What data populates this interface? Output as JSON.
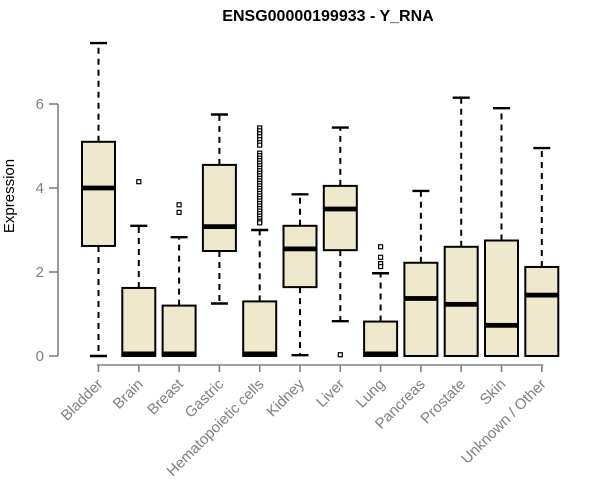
{
  "chart_data": {
    "type": "boxplot",
    "title": "ENSG00000199933 - Y_RNA",
    "ylabel": "Expression",
    "xlabel": "",
    "ylim": [
      0,
      7.6
    ],
    "yticks": [
      0,
      2,
      4,
      6
    ],
    "grid": false,
    "legend": "none",
    "colors": {
      "box_fill": "#EEE8CD",
      "box_border": "#000000",
      "median": "#000000",
      "whisker": "#000000",
      "axis": "#808080",
      "axis_label": "#7E7E86",
      "title": "#000000",
      "background": "#FFFFFF"
    },
    "categories": [
      "Bladder",
      "Brain",
      "Breast",
      "Gastric",
      "Hematopoietic cells",
      "Kidney",
      "Liver",
      "Lung",
      "Pancreas",
      "Prostate",
      "Skin",
      "Unknown / Other"
    ],
    "boxes": [
      {
        "category": "Bladder",
        "whisker_low": 0,
        "q1": 2.62,
        "median": 4.0,
        "q3": 5.1,
        "whisker_high": 7.45,
        "outliers": []
      },
      {
        "category": "Brain",
        "whisker_low": 0,
        "q1": 0,
        "median": 0.05,
        "q3": 1.62,
        "whisker_high": 3.1,
        "outliers": [
          4.15
        ]
      },
      {
        "category": "Breast",
        "whisker_low": 0,
        "q1": 0,
        "median": 0.05,
        "q3": 1.2,
        "whisker_high": 2.83,
        "outliers": [
          3.6,
          3.42
        ]
      },
      {
        "category": "Gastric",
        "whisker_low": 1.25,
        "q1": 2.5,
        "median": 3.08,
        "q3": 4.55,
        "whisker_high": 5.75,
        "outliers": []
      },
      {
        "category": "Hematopoietic cells",
        "whisker_low": 0,
        "q1": 0,
        "median": 0.05,
        "q3": 1.3,
        "whisker_high": 3.0,
        "outliers": [
          5.43,
          5.36,
          5.29,
          5.22,
          5.15,
          5.08,
          5.02,
          4.83,
          4.77,
          4.71,
          4.65,
          4.59,
          4.53,
          4.47,
          4.41,
          4.35,
          4.29,
          4.23,
          4.17,
          4.11,
          4.05,
          3.99,
          3.93,
          3.87,
          3.81,
          3.75,
          3.69,
          3.63,
          3.57,
          3.51,
          3.45,
          3.39,
          3.33,
          3.27,
          3.21,
          3.17
        ]
      },
      {
        "category": "Kidney",
        "whisker_low": 0.02,
        "q1": 1.64,
        "median": 2.55,
        "q3": 3.1,
        "whisker_high": 3.85,
        "outliers": []
      },
      {
        "category": "Liver",
        "whisker_low": 0.83,
        "q1": 2.52,
        "median": 3.5,
        "q3": 4.05,
        "whisker_high": 5.44,
        "outliers": [
          0.03
        ]
      },
      {
        "category": "Lung",
        "whisker_low": 0,
        "q1": 0,
        "median": 0.05,
        "q3": 0.82,
        "whisker_high": 1.97,
        "outliers": [
          2.6,
          2.35,
          2.2,
          2.13
        ]
      },
      {
        "category": "Pancreas",
        "whisker_low": 0,
        "q1": 0,
        "median": 1.37,
        "q3": 2.22,
        "whisker_high": 3.93,
        "outliers": []
      },
      {
        "category": "Prostate",
        "whisker_low": 0,
        "q1": 0,
        "median": 1.23,
        "q3": 2.6,
        "whisker_high": 6.15,
        "outliers": []
      },
      {
        "category": "Skin",
        "whisker_low": 0,
        "q1": 0,
        "median": 0.73,
        "q3": 2.75,
        "whisker_high": 5.9,
        "outliers": []
      },
      {
        "category": "Unknown / Other",
        "whisker_low": 0,
        "q1": 0,
        "median": 1.45,
        "q3": 2.12,
        "whisker_high": 4.95,
        "outliers": []
      }
    ]
  }
}
